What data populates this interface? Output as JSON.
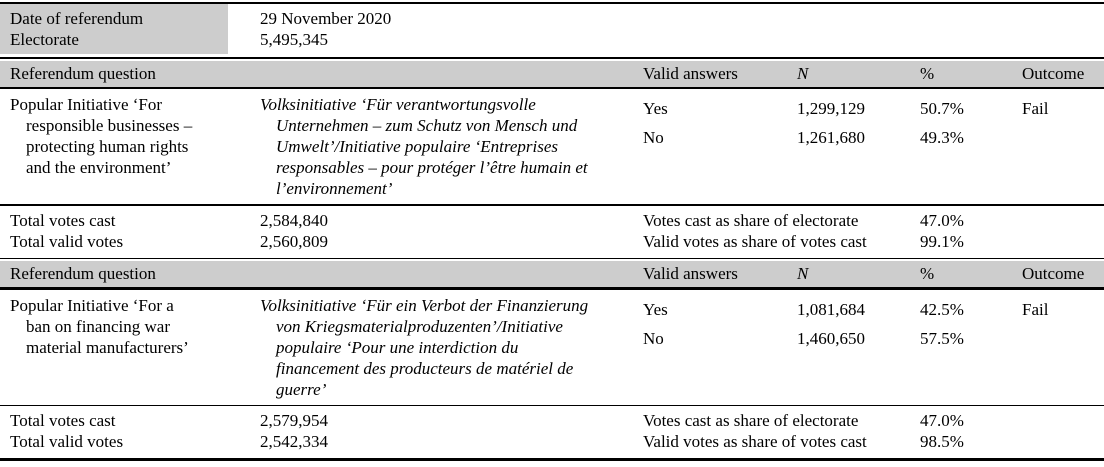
{
  "colors": {
    "header_bg": "#cdcdcd",
    "rule": "#000000"
  },
  "meta": {
    "date_label": "Date of referendum",
    "date_value": "29 November 2020",
    "electorate_label": "Electorate",
    "electorate_value": "5,495,345"
  },
  "header": {
    "question": "Referendum question",
    "valid_answers": "Valid answers",
    "n": "N",
    "percent": "%",
    "outcome": "Outcome"
  },
  "referendums": [
    {
      "question_en": "Popular Initiative ‘For\nresponsible businesses –\nprotecting human rights\nand the environment’",
      "question_orig": "Volksinitiative ‘Für verantwortungsvolle\nUnternehmen – zum Schutz von Mensch und\nUmwelt’/Initiative populaire ‘Entreprises\nresponsables – pour protéger l’être humain et\nl’environnement’",
      "answers": [
        {
          "label": "Yes",
          "n": "1,299,129",
          "pct": "50.7%"
        },
        {
          "label": "No",
          "n": "1,261,680",
          "pct": "49.3%"
        }
      ],
      "outcome": "Fail",
      "totals": {
        "votes_cast_label": "Total votes cast",
        "votes_cast": "2,584,840",
        "valid_votes_label": "Total valid votes",
        "valid_votes": "2,560,809",
        "share_electorate_label": "Votes cast as share of electorate",
        "share_electorate": "47.0%",
        "share_votes_label": "Valid votes as share of votes cast",
        "share_votes": "99.1%"
      }
    },
    {
      "question_en": "Popular Initiative ‘For a\nban on financing war\nmaterial manufacturers’",
      "question_orig": "Volksinitiative ‘Für ein Verbot der Finanzierung\nvon Kriegsmaterialproduzenten’/Initiative\npopulaire ‘Pour une interdiction du\nfinancement des producteurs de matériel de\nguerre’",
      "answers": [
        {
          "label": "Yes",
          "n": "1,081,684",
          "pct": "42.5%"
        },
        {
          "label": "No",
          "n": "1,460,650",
          "pct": "57.5%"
        }
      ],
      "outcome": "Fail",
      "totals": {
        "votes_cast_label": "Total votes cast",
        "votes_cast": "2,579,954",
        "valid_votes_label": "Total valid votes",
        "valid_votes": "2,542,334",
        "share_electorate_label": "Votes cast as share of electorate",
        "share_electorate": "47.0%",
        "share_votes_label": "Valid votes as share of votes cast",
        "share_votes": "98.5%"
      }
    }
  ]
}
